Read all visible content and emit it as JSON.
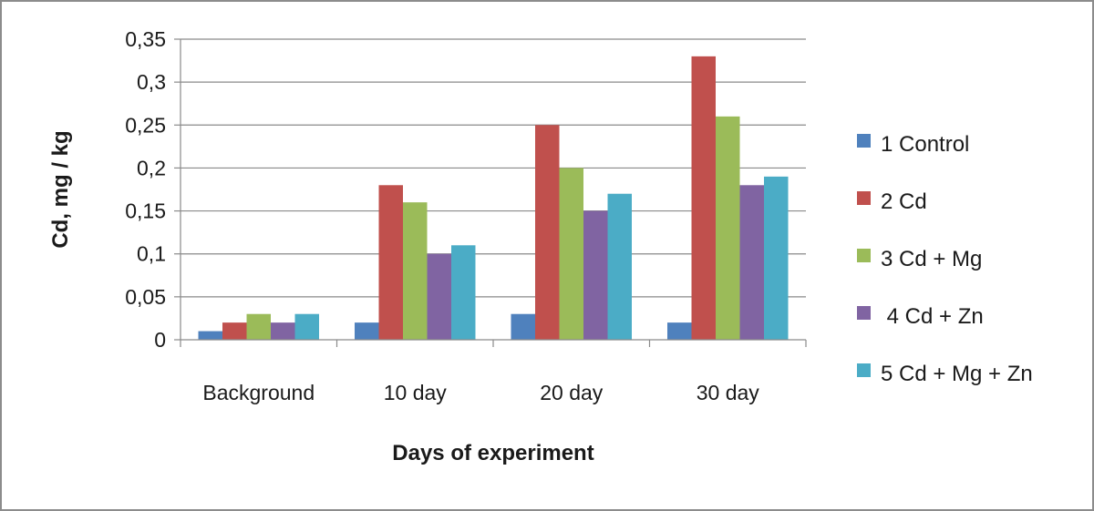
{
  "chart_data": {
    "type": "bar",
    "title": "",
    "xlabel": "Days of experiment",
    "ylabel": "Cd, mg / kg",
    "categories": [
      "Background",
      "10 day",
      "20 day",
      "30 day"
    ],
    "ylim": [
      0,
      0.35
    ],
    "yticks": [
      {
        "value": 0,
        "label": "0"
      },
      {
        "value": 0.05,
        "label": "0,05"
      },
      {
        "value": 0.1,
        "label": "0,1"
      },
      {
        "value": 0.15,
        "label": "0,15"
      },
      {
        "value": 0.2,
        "label": "0,2"
      },
      {
        "value": 0.25,
        "label": "0,25"
      },
      {
        "value": 0.3,
        "label": "0,3"
      },
      {
        "value": 0.35,
        "label": "0,35"
      }
    ],
    "grid": true,
    "legend_position": "right",
    "series": [
      {
        "name": "1 Control",
        "color": "#4f81bd",
        "values": [
          0.01,
          0.02,
          0.03,
          0.02
        ]
      },
      {
        "name": "2 Cd",
        "color": "#c0504d",
        "values": [
          0.02,
          0.18,
          0.25,
          0.33
        ]
      },
      {
        "name": "3 Cd + Mg",
        "color": "#9bbb59",
        "values": [
          0.03,
          0.16,
          0.2,
          0.26
        ]
      },
      {
        "name": " 4 Cd + Zn",
        "color": "#8064a2",
        "values": [
          0.02,
          0.1,
          0.15,
          0.18
        ]
      },
      {
        "name": "5 Cd + Mg + Zn",
        "color": "#4bacc6",
        "values": [
          0.03,
          0.11,
          0.17,
          0.19
        ]
      }
    ]
  }
}
